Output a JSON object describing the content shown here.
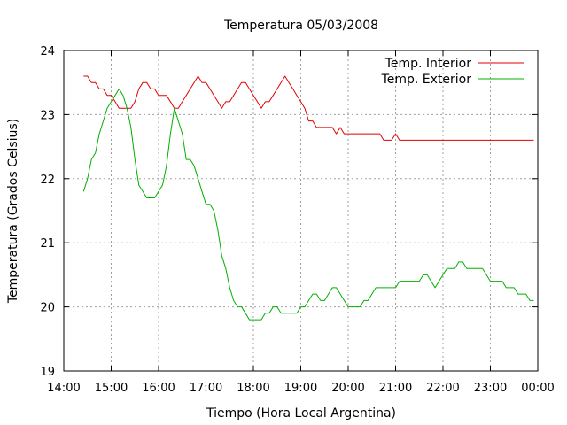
{
  "chart_data": {
    "type": "line",
    "title": "Temperatura 05/03/2008",
    "xlabel": "Tiempo (Hora Local Argentina)",
    "ylabel": "Temperatura (Grados Celsius)",
    "xlim": [
      "14:00",
      "00:00"
    ],
    "ylim": [
      19,
      24
    ],
    "x_ticks": [
      "14:00",
      "15:00",
      "16:00",
      "17:00",
      "18:00",
      "19:00",
      "20:00",
      "21:00",
      "22:00",
      "23:00",
      "00:00"
    ],
    "y_ticks": [
      19,
      20,
      21,
      22,
      23,
      24
    ],
    "grid": true,
    "legend_position": "top-right",
    "series": [
      {
        "name": "Temp. Interior",
        "color": "#e00000",
        "points": [
          [
            "14:25",
            23.6
          ],
          [
            "14:30",
            23.6
          ],
          [
            "14:35",
            23.5
          ],
          [
            "14:40",
            23.5
          ],
          [
            "14:45",
            23.4
          ],
          [
            "14:50",
            23.4
          ],
          [
            "14:55",
            23.3
          ],
          [
            "15:00",
            23.3
          ],
          [
            "15:05",
            23.2
          ],
          [
            "15:10",
            23.1
          ],
          [
            "15:15",
            23.1
          ],
          [
            "15:20",
            23.1
          ],
          [
            "15:25",
            23.1
          ],
          [
            "15:30",
            23.2
          ],
          [
            "15:35",
            23.4
          ],
          [
            "15:40",
            23.5
          ],
          [
            "15:45",
            23.5
          ],
          [
            "15:50",
            23.4
          ],
          [
            "15:55",
            23.4
          ],
          [
            "16:00",
            23.3
          ],
          [
            "16:05",
            23.3
          ],
          [
            "16:10",
            23.3
          ],
          [
            "16:15",
            23.2
          ],
          [
            "16:20",
            23.1
          ],
          [
            "16:25",
            23.1
          ],
          [
            "16:30",
            23.2
          ],
          [
            "16:35",
            23.3
          ],
          [
            "16:40",
            23.4
          ],
          [
            "16:45",
            23.5
          ],
          [
            "16:50",
            23.6
          ],
          [
            "16:55",
            23.5
          ],
          [
            "17:00",
            23.5
          ],
          [
            "17:05",
            23.4
          ],
          [
            "17:10",
            23.3
          ],
          [
            "17:15",
            23.2
          ],
          [
            "17:20",
            23.1
          ],
          [
            "17:25",
            23.2
          ],
          [
            "17:30",
            23.2
          ],
          [
            "17:35",
            23.3
          ],
          [
            "17:40",
            23.4
          ],
          [
            "17:45",
            23.5
          ],
          [
            "17:50",
            23.5
          ],
          [
            "17:55",
            23.4
          ],
          [
            "18:00",
            23.3
          ],
          [
            "18:05",
            23.2
          ],
          [
            "18:10",
            23.1
          ],
          [
            "18:15",
            23.2
          ],
          [
            "18:20",
            23.2
          ],
          [
            "18:25",
            23.3
          ],
          [
            "18:30",
            23.4
          ],
          [
            "18:35",
            23.5
          ],
          [
            "18:40",
            23.6
          ],
          [
            "18:45",
            23.5
          ],
          [
            "18:50",
            23.4
          ],
          [
            "18:55",
            23.3
          ],
          [
            "19:00",
            23.2
          ],
          [
            "19:05",
            23.1
          ],
          [
            "19:10",
            22.9
          ],
          [
            "19:15",
            22.9
          ],
          [
            "19:20",
            22.8
          ],
          [
            "19:25",
            22.8
          ],
          [
            "19:30",
            22.8
          ],
          [
            "19:35",
            22.8
          ],
          [
            "19:40",
            22.8
          ],
          [
            "19:45",
            22.7
          ],
          [
            "19:50",
            22.8
          ],
          [
            "19:55",
            22.7
          ],
          [
            "20:00",
            22.7
          ],
          [
            "20:10",
            22.7
          ],
          [
            "20:20",
            22.7
          ],
          [
            "20:30",
            22.7
          ],
          [
            "20:40",
            22.7
          ],
          [
            "20:45",
            22.6
          ],
          [
            "20:50",
            22.6
          ],
          [
            "20:55",
            22.6
          ],
          [
            "21:00",
            22.7
          ],
          [
            "21:05",
            22.6
          ],
          [
            "21:30",
            22.6
          ],
          [
            "22:00",
            22.6
          ],
          [
            "22:30",
            22.6
          ],
          [
            "23:00",
            22.6
          ],
          [
            "23:30",
            22.6
          ],
          [
            "23:55",
            22.6
          ]
        ]
      },
      {
        "name": "Temp. Exterior",
        "color": "#00b000",
        "points": [
          [
            "14:25",
            21.8
          ],
          [
            "14:30",
            22.0
          ],
          [
            "14:35",
            22.3
          ],
          [
            "14:40",
            22.4
          ],
          [
            "14:45",
            22.7
          ],
          [
            "14:50",
            22.9
          ],
          [
            "14:55",
            23.1
          ],
          [
            "15:00",
            23.2
          ],
          [
            "15:05",
            23.3
          ],
          [
            "15:10",
            23.4
          ],
          [
            "15:15",
            23.3
          ],
          [
            "15:20",
            23.1
          ],
          [
            "15:25",
            22.8
          ],
          [
            "15:30",
            22.3
          ],
          [
            "15:35",
            21.9
          ],
          [
            "15:40",
            21.8
          ],
          [
            "15:45",
            21.7
          ],
          [
            "15:50",
            21.7
          ],
          [
            "15:55",
            21.7
          ],
          [
            "16:00",
            21.8
          ],
          [
            "16:05",
            21.9
          ],
          [
            "16:10",
            22.2
          ],
          [
            "16:15",
            22.7
          ],
          [
            "16:20",
            23.1
          ],
          [
            "16:25",
            22.9
          ],
          [
            "16:30",
            22.7
          ],
          [
            "16:35",
            22.3
          ],
          [
            "16:40",
            22.3
          ],
          [
            "16:45",
            22.2
          ],
          [
            "16:50",
            22.0
          ],
          [
            "16:55",
            21.8
          ],
          [
            "17:00",
            21.6
          ],
          [
            "17:05",
            21.6
          ],
          [
            "17:10",
            21.5
          ],
          [
            "17:15",
            21.2
          ],
          [
            "17:20",
            20.8
          ],
          [
            "17:25",
            20.6
          ],
          [
            "17:30",
            20.3
          ],
          [
            "17:35",
            20.1
          ],
          [
            "17:40",
            20.0
          ],
          [
            "17:45",
            20.0
          ],
          [
            "17:50",
            19.9
          ],
          [
            "17:55",
            19.8
          ],
          [
            "18:00",
            19.8
          ],
          [
            "18:05",
            19.8
          ],
          [
            "18:10",
            19.8
          ],
          [
            "18:15",
            19.9
          ],
          [
            "18:20",
            19.9
          ],
          [
            "18:25",
            20.0
          ],
          [
            "18:30",
            20.0
          ],
          [
            "18:35",
            19.9
          ],
          [
            "18:40",
            19.9
          ],
          [
            "18:45",
            19.9
          ],
          [
            "18:50",
            19.9
          ],
          [
            "18:55",
            19.9
          ],
          [
            "19:00",
            20.0
          ],
          [
            "19:05",
            20.0
          ],
          [
            "19:10",
            20.1
          ],
          [
            "19:15",
            20.2
          ],
          [
            "19:20",
            20.2
          ],
          [
            "19:25",
            20.1
          ],
          [
            "19:30",
            20.1
          ],
          [
            "19:35",
            20.2
          ],
          [
            "19:40",
            20.3
          ],
          [
            "19:45",
            20.3
          ],
          [
            "19:50",
            20.2
          ],
          [
            "19:55",
            20.1
          ],
          [
            "20:00",
            20.0
          ],
          [
            "20:05",
            20.0
          ],
          [
            "20:10",
            20.0
          ],
          [
            "20:15",
            20.0
          ],
          [
            "20:20",
            20.1
          ],
          [
            "20:25",
            20.1
          ],
          [
            "20:30",
            20.2
          ],
          [
            "20:35",
            20.3
          ],
          [
            "20:40",
            20.3
          ],
          [
            "20:45",
            20.3
          ],
          [
            "20:50",
            20.3
          ],
          [
            "20:55",
            20.3
          ],
          [
            "21:00",
            20.3
          ],
          [
            "21:05",
            20.4
          ],
          [
            "21:10",
            20.4
          ],
          [
            "21:15",
            20.4
          ],
          [
            "21:20",
            20.4
          ],
          [
            "21:25",
            20.4
          ],
          [
            "21:30",
            20.4
          ],
          [
            "21:35",
            20.5
          ],
          [
            "21:40",
            20.5
          ],
          [
            "21:45",
            20.4
          ],
          [
            "21:50",
            20.3
          ],
          [
            "21:55",
            20.4
          ],
          [
            "22:00",
            20.5
          ],
          [
            "22:05",
            20.6
          ],
          [
            "22:10",
            20.6
          ],
          [
            "22:15",
            20.6
          ],
          [
            "22:20",
            20.7
          ],
          [
            "22:25",
            20.7
          ],
          [
            "22:30",
            20.6
          ],
          [
            "22:35",
            20.6
          ],
          [
            "22:40",
            20.6
          ],
          [
            "22:45",
            20.6
          ],
          [
            "22:50",
            20.6
          ],
          [
            "22:55",
            20.5
          ],
          [
            "23:00",
            20.4
          ],
          [
            "23:05",
            20.4
          ],
          [
            "23:10",
            20.4
          ],
          [
            "23:15",
            20.4
          ],
          [
            "23:20",
            20.3
          ],
          [
            "23:25",
            20.3
          ],
          [
            "23:30",
            20.3
          ],
          [
            "23:35",
            20.2
          ],
          [
            "23:40",
            20.2
          ],
          [
            "23:45",
            20.2
          ],
          [
            "23:50",
            20.1
          ],
          [
            "23:55",
            20.1
          ]
        ]
      }
    ]
  }
}
